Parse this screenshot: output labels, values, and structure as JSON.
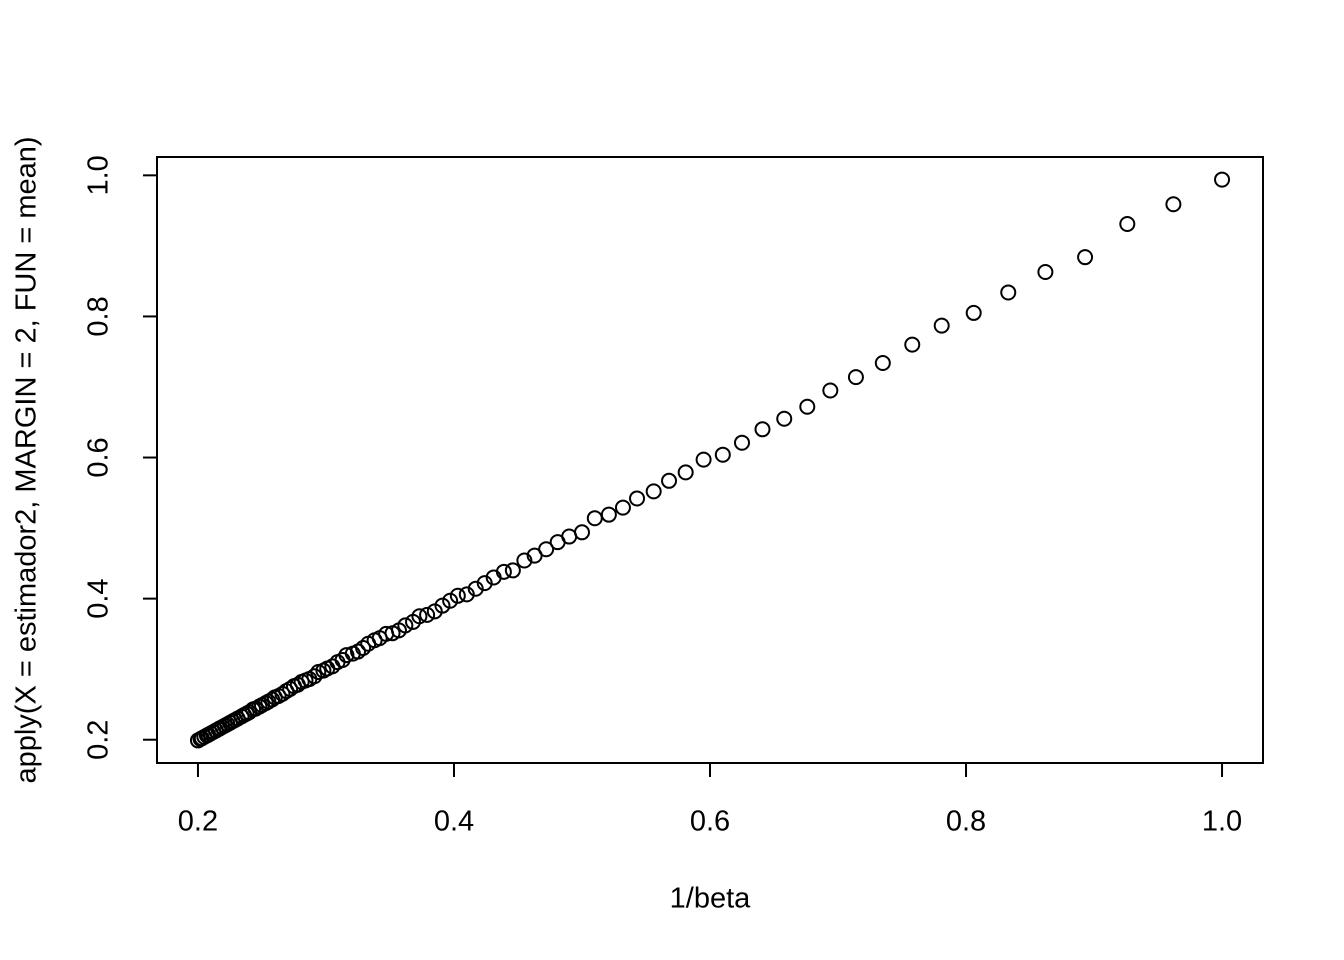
{
  "chart_data": {
    "type": "scatter",
    "x_label": "1/beta",
    "y_label": "apply(X = estimador2, MARGIN = 2, FUN = mean)",
    "color": "#000000",
    "xlim": [
      0.168,
      1.032
    ],
    "ylim": [
      0.167,
      1.026
    ],
    "xticks": [
      0.2,
      0.4,
      0.6,
      0.8,
      {
        "value": 1,
        "label": "1.0"
      }
    ],
    "yticks": [
      0.2,
      0.4,
      0.6,
      0.8,
      {
        "value": 1,
        "label": "1.0"
      }
    ],
    "x": [
      1.0,
      0.962,
      0.926,
      0.893,
      0.862,
      0.833,
      0.806,
      0.781,
      0.758,
      0.735,
      0.714,
      0.694,
      0.676,
      0.658,
      0.641,
      0.625,
      0.61,
      0.595,
      0.581,
      0.568,
      0.556,
      0.543,
      0.532,
      0.521,
      0.51,
      0.5,
      0.49,
      0.481,
      0.472,
      0.463,
      0.455,
      0.446,
      0.439,
      0.431,
      0.424,
      0.417,
      0.41,
      0.403,
      0.397,
      0.391,
      0.385,
      0.379,
      0.373,
      0.368,
      0.362,
      0.357,
      0.352,
      0.347,
      0.342,
      0.338,
      0.333,
      0.329,
      0.325,
      0.321,
      0.316,
      0.313,
      0.309,
      0.305,
      0.301,
      0.298,
      0.294,
      0.291,
      0.287,
      0.284,
      0.281,
      0.278,
      0.275,
      0.272,
      0.269,
      0.266,
      0.263,
      0.26,
      0.258,
      0.255,
      0.253,
      0.25,
      0.248,
      0.245,
      0.243,
      0.24,
      0.238,
      0.236,
      0.234,
      0.231,
      0.229,
      0.227,
      0.225,
      0.223,
      0.221,
      0.219,
      0.217,
      0.216,
      0.214,
      0.212,
      0.21,
      0.208,
      0.207,
      0.205,
      0.203,
      0.202,
      0.2
    ],
    "values": [
      0.994,
      0.959,
      0.931,
      0.884,
      0.863,
      0.834,
      0.805,
      0.787,
      0.76,
      0.734,
      0.714,
      0.695,
      0.672,
      0.655,
      0.64,
      0.621,
      0.604,
      0.597,
      0.579,
      0.567,
      0.552,
      0.542,
      0.529,
      0.519,
      0.514,
      0.494,
      0.488,
      0.48,
      0.47,
      0.461,
      0.454,
      0.44,
      0.438,
      0.43,
      0.422,
      0.414,
      0.406,
      0.404,
      0.397,
      0.39,
      0.382,
      0.377,
      0.375,
      0.367,
      0.362,
      0.355,
      0.351,
      0.35,
      0.344,
      0.341,
      0.336,
      0.33,
      0.325,
      0.322,
      0.32,
      0.313,
      0.31,
      0.304,
      0.301,
      0.298,
      0.296,
      0.29,
      0.286,
      0.284,
      0.282,
      0.278,
      0.276,
      0.272,
      0.269,
      0.265,
      0.262,
      0.26,
      0.257,
      0.254,
      0.252,
      0.249,
      0.247,
      0.244,
      0.243,
      0.239,
      0.237,
      0.235,
      0.233,
      0.23,
      0.228,
      0.226,
      0.224,
      0.222,
      0.22,
      0.218,
      0.216,
      0.215,
      0.213,
      0.211,
      0.209,
      0.207,
      0.206,
      0.204,
      0.202,
      0.201,
      0.199
    ]
  }
}
